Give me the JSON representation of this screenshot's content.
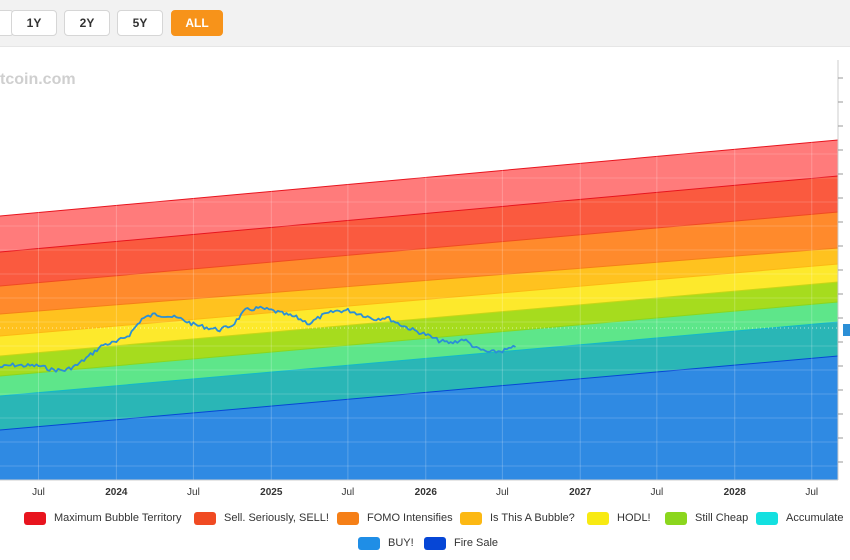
{
  "range_buttons": [
    {
      "label": "1Y",
      "active": false
    },
    {
      "label": "2Y",
      "active": false
    },
    {
      "label": "5Y",
      "active": false
    },
    {
      "label": "ALL",
      "active": true
    }
  ],
  "watermark": "tcoin.com",
  "colors": {
    "accent": "#f7931a",
    "price_line": "#2b8fd6"
  },
  "chart_data": {
    "type": "area",
    "title": "",
    "xlabel": "",
    "ylabel": "",
    "grid": true,
    "legend_position": "bottom",
    "x_ticks": [
      "Jul",
      "2024",
      "Jul",
      "2025",
      "Jul",
      "2026",
      "Jul",
      "2027",
      "Jul",
      "2028",
      "Jul"
    ],
    "x_tick_dates": [
      "2023-07-01",
      "2024-01-01",
      "2024-07-01",
      "2025-01-01",
      "2025-07-01",
      "2026-01-01",
      "2026-07-01",
      "2027-01-01",
      "2027-07-01",
      "2028-01-01",
      "2028-07-01"
    ],
    "xlim": [
      "2023-04-01",
      "2028-09-01"
    ],
    "bands": [
      {
        "name": "Maximum Bubble Territory",
        "color": "#e8141e"
      },
      {
        "name": "Sell. Seriously, SELL!",
        "color": "#f04a22"
      },
      {
        "name": "FOMO Intensifies",
        "color": "#f57f17"
      },
      {
        "name": "Is This A Bubble?",
        "color": "#fcb813"
      },
      {
        "name": "HODL!",
        "color": "#f8ea12"
      },
      {
        "name": "Still Cheap",
        "color": "#8bd61d"
      },
      {
        "name": "Accumulate",
        "color": "#13e0e0"
      },
      {
        "name": "BUY!",
        "color": "#1f8ee6"
      },
      {
        "name": "Fire Sale",
        "color": "#0646d6"
      }
    ],
    "price_series": {
      "name": "",
      "x": [
        "2023-04-01",
        "2023-05-01",
        "2023-06-01",
        "2023-07-01",
        "2023-08-01",
        "2023-09-01",
        "2023-10-01",
        "2023-11-01",
        "2023-12-01",
        "2024-01-01",
        "2024-02-01",
        "2024-03-01",
        "2024-04-01",
        "2024-05-01",
        "2024-06-01",
        "2024-07-01",
        "2024-08-01",
        "2024-09-01",
        "2024-10-01",
        "2024-11-01",
        "2024-12-01",
        "2025-01-01",
        "2025-02-01",
        "2025-03-01",
        "2025-04-01",
        "2025-05-01",
        "2025-06-01",
        "2025-07-01",
        "2025-08-01",
        "2025-09-01",
        "2025-10-01",
        "2025-11-01",
        "2025-12-01",
        "2026-01-01",
        "2026-02-01",
        "2026-03-01",
        "2026-04-01",
        "2026-05-01",
        "2026-06-01",
        "2026-07-01",
        "2026-08-01"
      ],
      "level": [
        0.24,
        0.27,
        0.26,
        0.26,
        0.21,
        0.2,
        0.27,
        0.4,
        0.53,
        0.56,
        0.66,
        0.86,
        0.92,
        0.9,
        0.86,
        0.79,
        0.75,
        0.72,
        0.78,
        0.97,
        1.0,
        0.97,
        0.92,
        0.88,
        0.8,
        0.9,
        0.96,
        0.97,
        0.92,
        0.86,
        0.88,
        0.79,
        0.72,
        0.66,
        0.58,
        0.55,
        0.6,
        0.48,
        0.43,
        0.45,
        0.5
      ]
    }
  },
  "legend": [
    {
      "label": "Maximum Bubble Territory",
      "color": "#e8141e"
    },
    {
      "label": "Sell. Seriously, SELL!",
      "color": "#f04a22"
    },
    {
      "label": "FOMO Intensifies",
      "color": "#f57f17"
    },
    {
      "label": "Is This A Bubble?",
      "color": "#fcb813"
    },
    {
      "label": "HODL!",
      "color": "#f8ea12"
    },
    {
      "label": "Still Cheap",
      "color": "#8bd61d"
    },
    {
      "label": "Accumulate",
      "color": "#13e0e0"
    },
    {
      "label": "BUY!",
      "color": "#1f8ee6"
    },
    {
      "label": "Fire Sale",
      "color": "#0646d6"
    }
  ]
}
